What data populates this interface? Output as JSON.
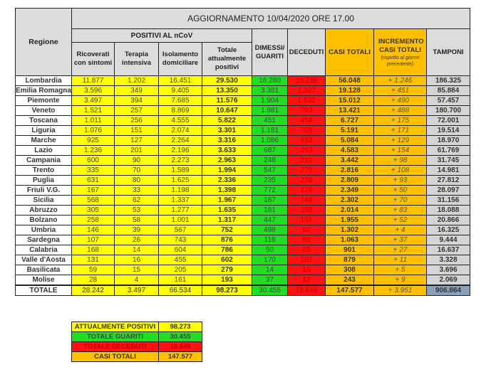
{
  "header": {
    "title": "AGGIORNAMENTO 10/04/2020 ORE 17.00",
    "regione": "Regione",
    "positivi_group": "POSITIVI AL nCoV",
    "cols": {
      "ricoverati": "Ricoverati con sintomi",
      "terapia": "Terapia intensiva",
      "isolamento": "Isolamento domiciliare",
      "totale_positivi": "Totale attualmente positivi",
      "dimessi": "DIMESSI/ GUARITI",
      "deceduti": "DECEDUTI",
      "casi_totali": "CASI TOTALI",
      "incremento": "INCREMENTO CASI TOTALI",
      "incremento_note": "(rispetto al giorno precedente)",
      "tamponi": "TAMPONI"
    }
  },
  "rows": [
    [
      "Lombardia",
      "11.877",
      "1.202",
      "16.451",
      "29.530",
      "16.280",
      "10.238",
      "56.048",
      "+ 1.246",
      "186.325"
    ],
    [
      "Emilia Romagna",
      "3.596",
      "349",
      "9.405",
      "13.350",
      "3.381",
      "2.397",
      "19.128",
      "+ 451",
      "85.884"
    ],
    [
      "Piemonte",
      "3.497",
      "394",
      "7.685",
      "11.576",
      "1.904",
      "1.532",
      "15.012",
      "+ 490",
      "57.457"
    ],
    [
      "Veneto",
      "1.521",
      "257",
      "8.869",
      "10.647",
      "1.981",
      "793",
      "13.421",
      "+ 488",
      "180.700"
    ],
    [
      "Toscana",
      "1.011",
      "256",
      "4.555",
      "5.822",
      "451",
      "454",
      "6.727",
      "+ 175",
      "72.001"
    ],
    [
      "Liguria",
      "1.076",
      "151",
      "2.074",
      "3.301",
      "1.181",
      "709",
      "5.191",
      "+ 171",
      "19.514"
    ],
    [
      "Marche",
      "925",
      "127",
      "2.264",
      "3.316",
      "1.086",
      "682",
      "5.084",
      "+ 129",
      "18.970"
    ],
    [
      "Lazio",
      "1.236",
      "201",
      "2.196",
      "3.633",
      "687",
      "263",
      "4.583",
      "+ 154",
      "61.769"
    ],
    [
      "Campania",
      "600",
      "90",
      "2.273",
      "2.963",
      "248",
      "231",
      "3.442",
      "+ 98",
      "31.745"
    ],
    [
      "Trento",
      "335",
      "70",
      "1.589",
      "1.994",
      "547",
      "275",
      "2.816",
      "+ 108",
      "14.981"
    ],
    [
      "Puglia",
      "631",
      "80",
      "1.625",
      "2.336",
      "235",
      "238",
      "2.809",
      "+ 93",
      "27.812"
    ],
    [
      "Friuli V.G.",
      "167",
      "33",
      "1.198",
      "1.398",
      "772",
      "179",
      "2.349",
      "+ 50",
      "28.097"
    ],
    [
      "Sicilia",
      "568",
      "62",
      "1.337",
      "1.967",
      "187",
      "148",
      "2.302",
      "+ 70",
      "31.156"
    ],
    [
      "Abruzzo",
      "305",
      "53",
      "1.277",
      "1.635",
      "181",
      "198",
      "2.014",
      "+ 83",
      "18.088"
    ],
    [
      "Bolzano",
      "258",
      "58",
      "1.001",
      "1.317",
      "447",
      "191",
      "1.955",
      "+ 52",
      "20.866"
    ],
    [
      "Umbria",
      "146",
      "39",
      "567",
      "752",
      "498",
      "52",
      "1.302",
      "+ 4",
      "16.325"
    ],
    [
      "Sardegna",
      "107",
      "26",
      "743",
      "876",
      "118",
      "69",
      "1.063",
      "+ 37",
      "9.444"
    ],
    [
      "Calabria",
      "168",
      "14",
      "604",
      "786",
      "50",
      "65",
      "901",
      "+ 27",
      "16.637"
    ],
    [
      "Valle d'Aosta",
      "131",
      "16",
      "455",
      "602",
      "170",
      "107",
      "879",
      "+ 11",
      "3.328"
    ],
    [
      "Basilicata",
      "59",
      "15",
      "205",
      "279",
      "14",
      "15",
      "308",
      "+ 5",
      "3.696"
    ],
    [
      "Molise",
      "28",
      "4",
      "161",
      "193",
      "37",
      "13",
      "243",
      "+ 9",
      "2.069"
    ]
  ],
  "totale": [
    "TOTALE",
    "28.242",
    "3.497",
    "66.534",
    "98.273",
    "30.455",
    "18.849",
    "147.577",
    "+ 3.951",
    "906.864"
  ],
  "summary": [
    {
      "label": "ATTUALMENTE POSITIVI",
      "value": "98.273"
    },
    {
      "label": "TOTALE GUARITI",
      "value": "30.455"
    },
    {
      "label": "TOTALE DECEDUTI",
      "value": "18.849"
    },
    {
      "label": "CASI TOTALI",
      "value": "147.577"
    }
  ]
}
